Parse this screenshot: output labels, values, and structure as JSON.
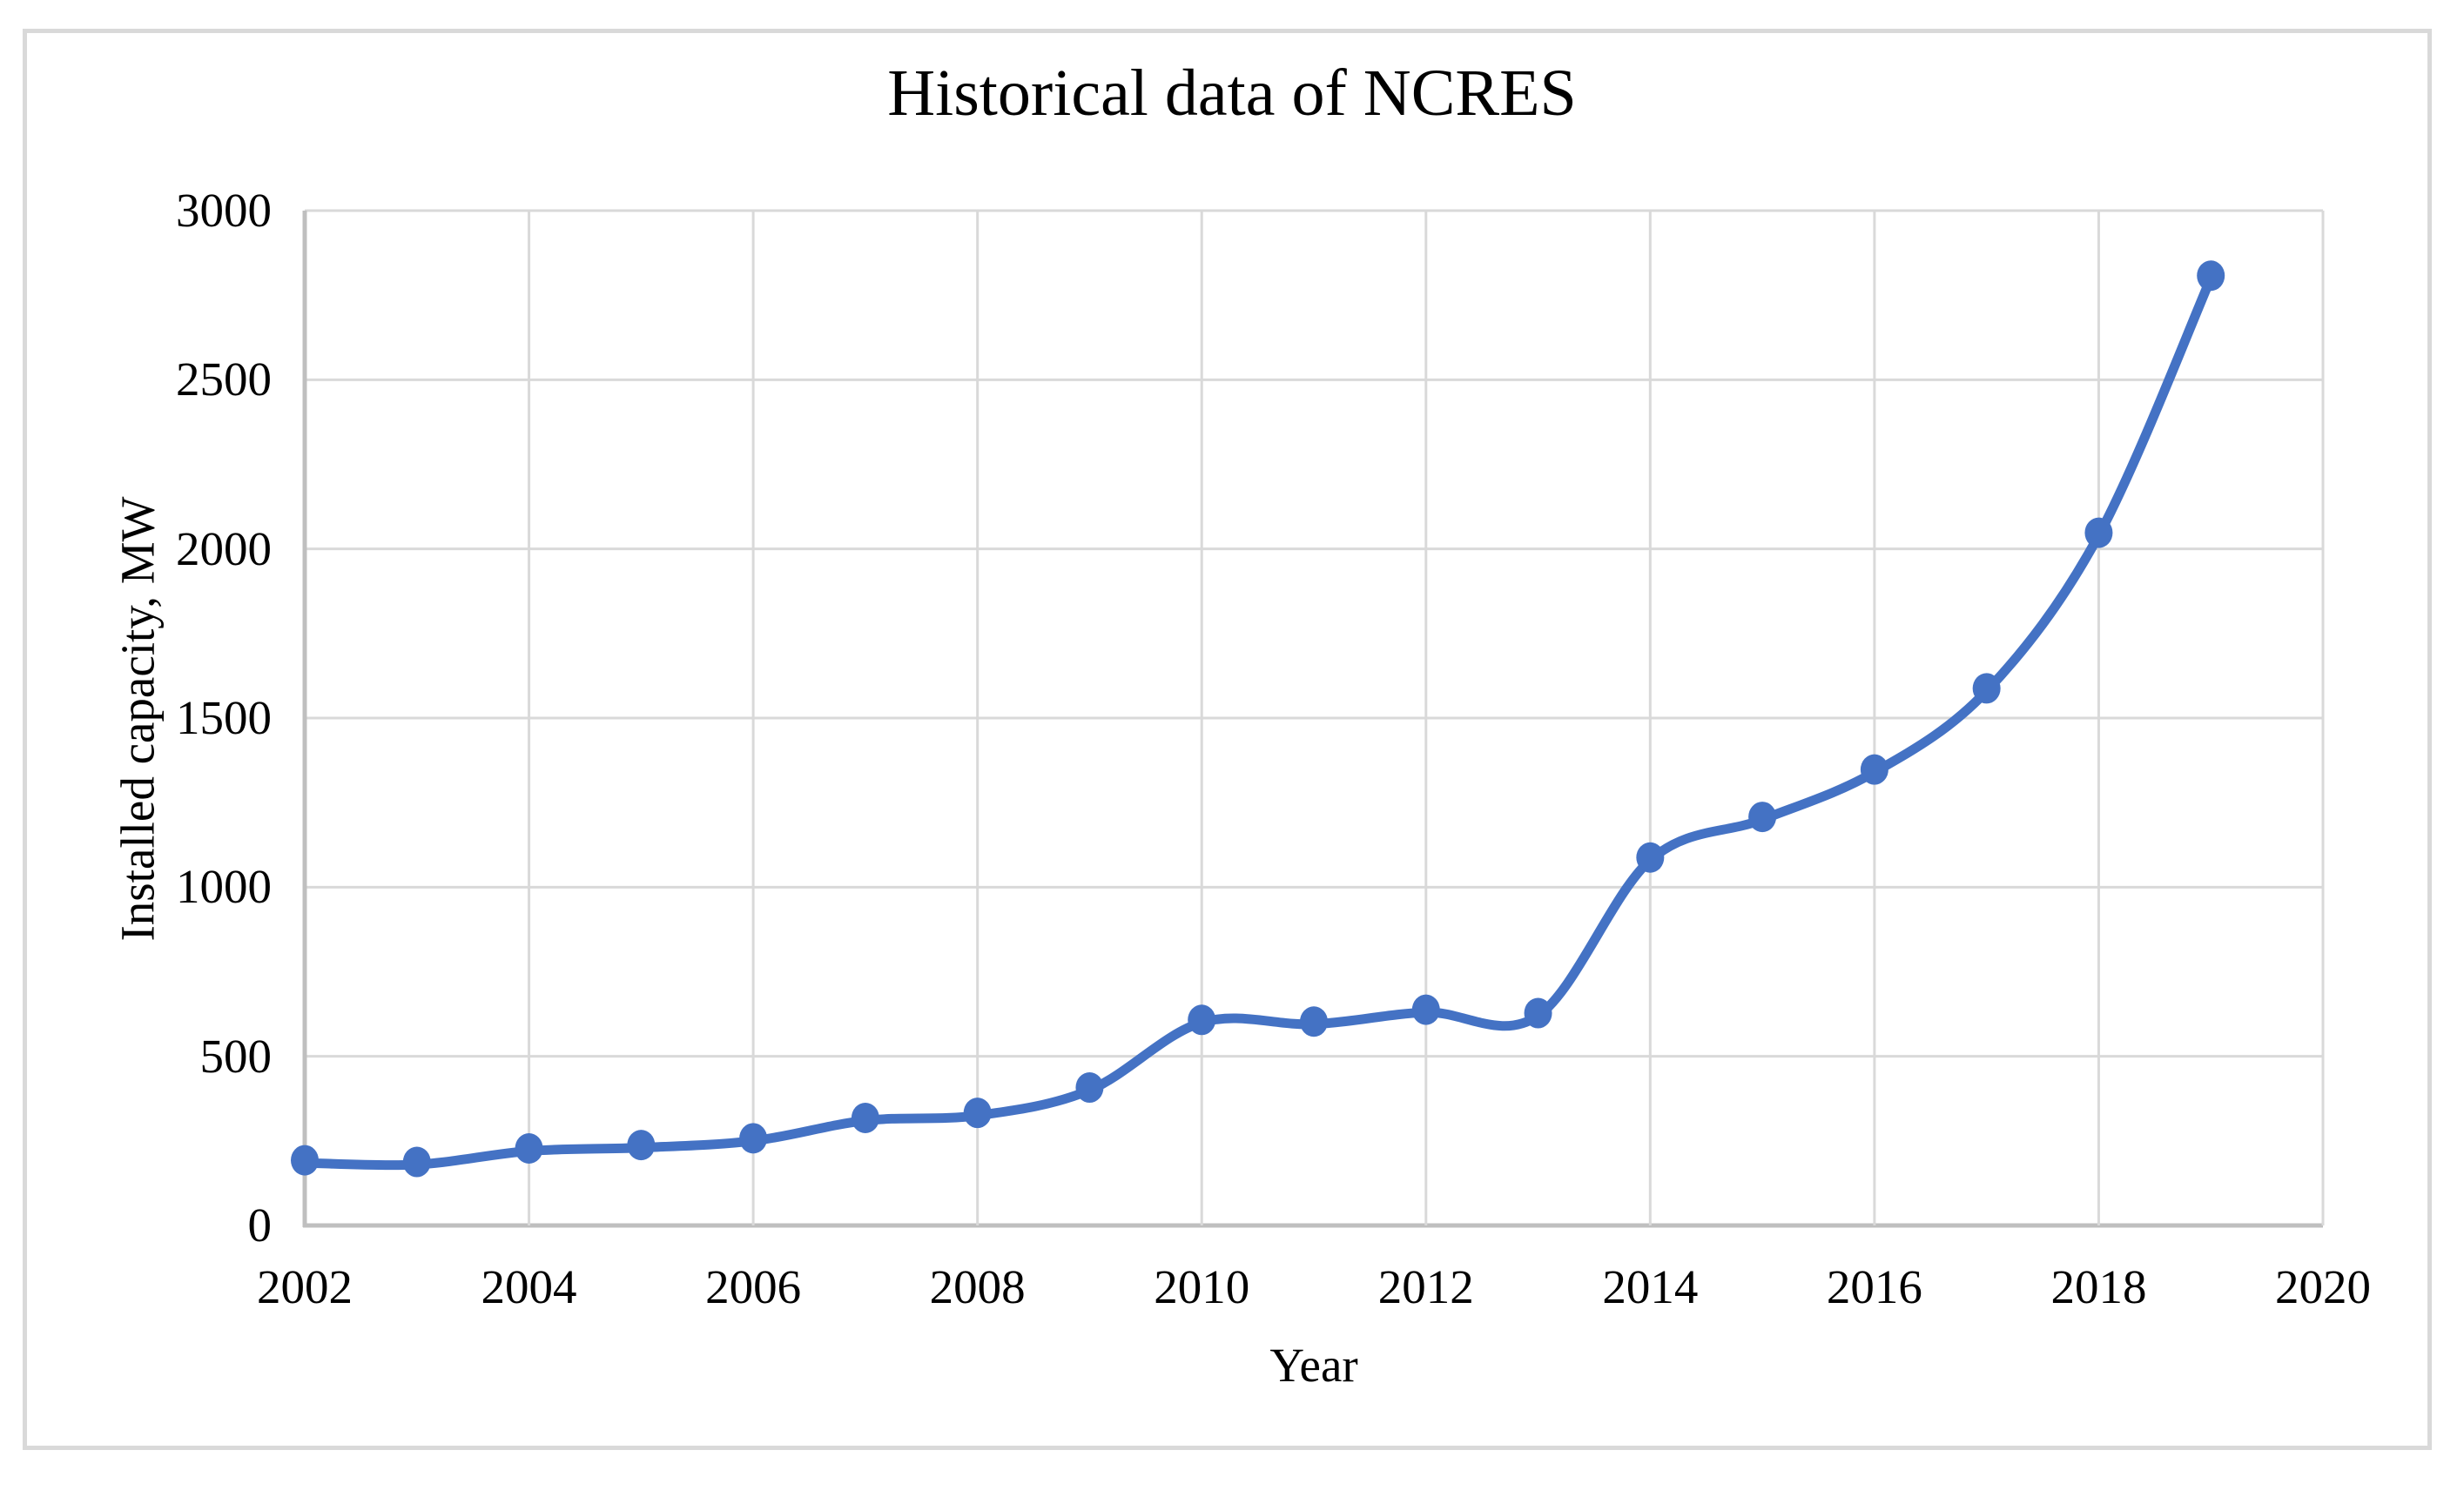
{
  "chart": {
    "title": "Historical data of NCRES",
    "x_axis_title": "Year",
    "y_axis_title": "Installed capacity, MW"
  },
  "chart_data": {
    "type": "line",
    "title": "Historical data of NCRES",
    "xlabel": "Year",
    "ylabel": "Installed capacity, MW",
    "x": [
      2002,
      2003,
      2004,
      2005,
      2006,
      2007,
      2008,
      2009,
      2010,
      2011,
      2012,
      2013,
      2014,
      2015,
      2016,
      2017,
      2018,
      2019
    ],
    "values": [
      185,
      180,
      220,
      230,
      250,
      310,
      325,
      400,
      600,
      595,
      630,
      620,
      1080,
      1200,
      1340,
      1580,
      2040,
      2800
    ],
    "xlim": [
      2002,
      2020
    ],
    "ylim": [
      0,
      3000
    ],
    "x_ticks": [
      2002,
      2004,
      2006,
      2008,
      2010,
      2012,
      2014,
      2016,
      2018,
      2020
    ],
    "y_ticks": [
      0,
      500,
      1000,
      1500,
      2000,
      2500,
      3000
    ],
    "grid": true,
    "smooth_line": true,
    "markers": true,
    "legend_position": "none",
    "line_color": "#4472C4",
    "marker_color": "#4472C4",
    "gridline_color": "#D9D9D9",
    "axis_line_color": "#BFBFBF",
    "text_color": "#000000",
    "background_color": "#FFFFFF"
  }
}
